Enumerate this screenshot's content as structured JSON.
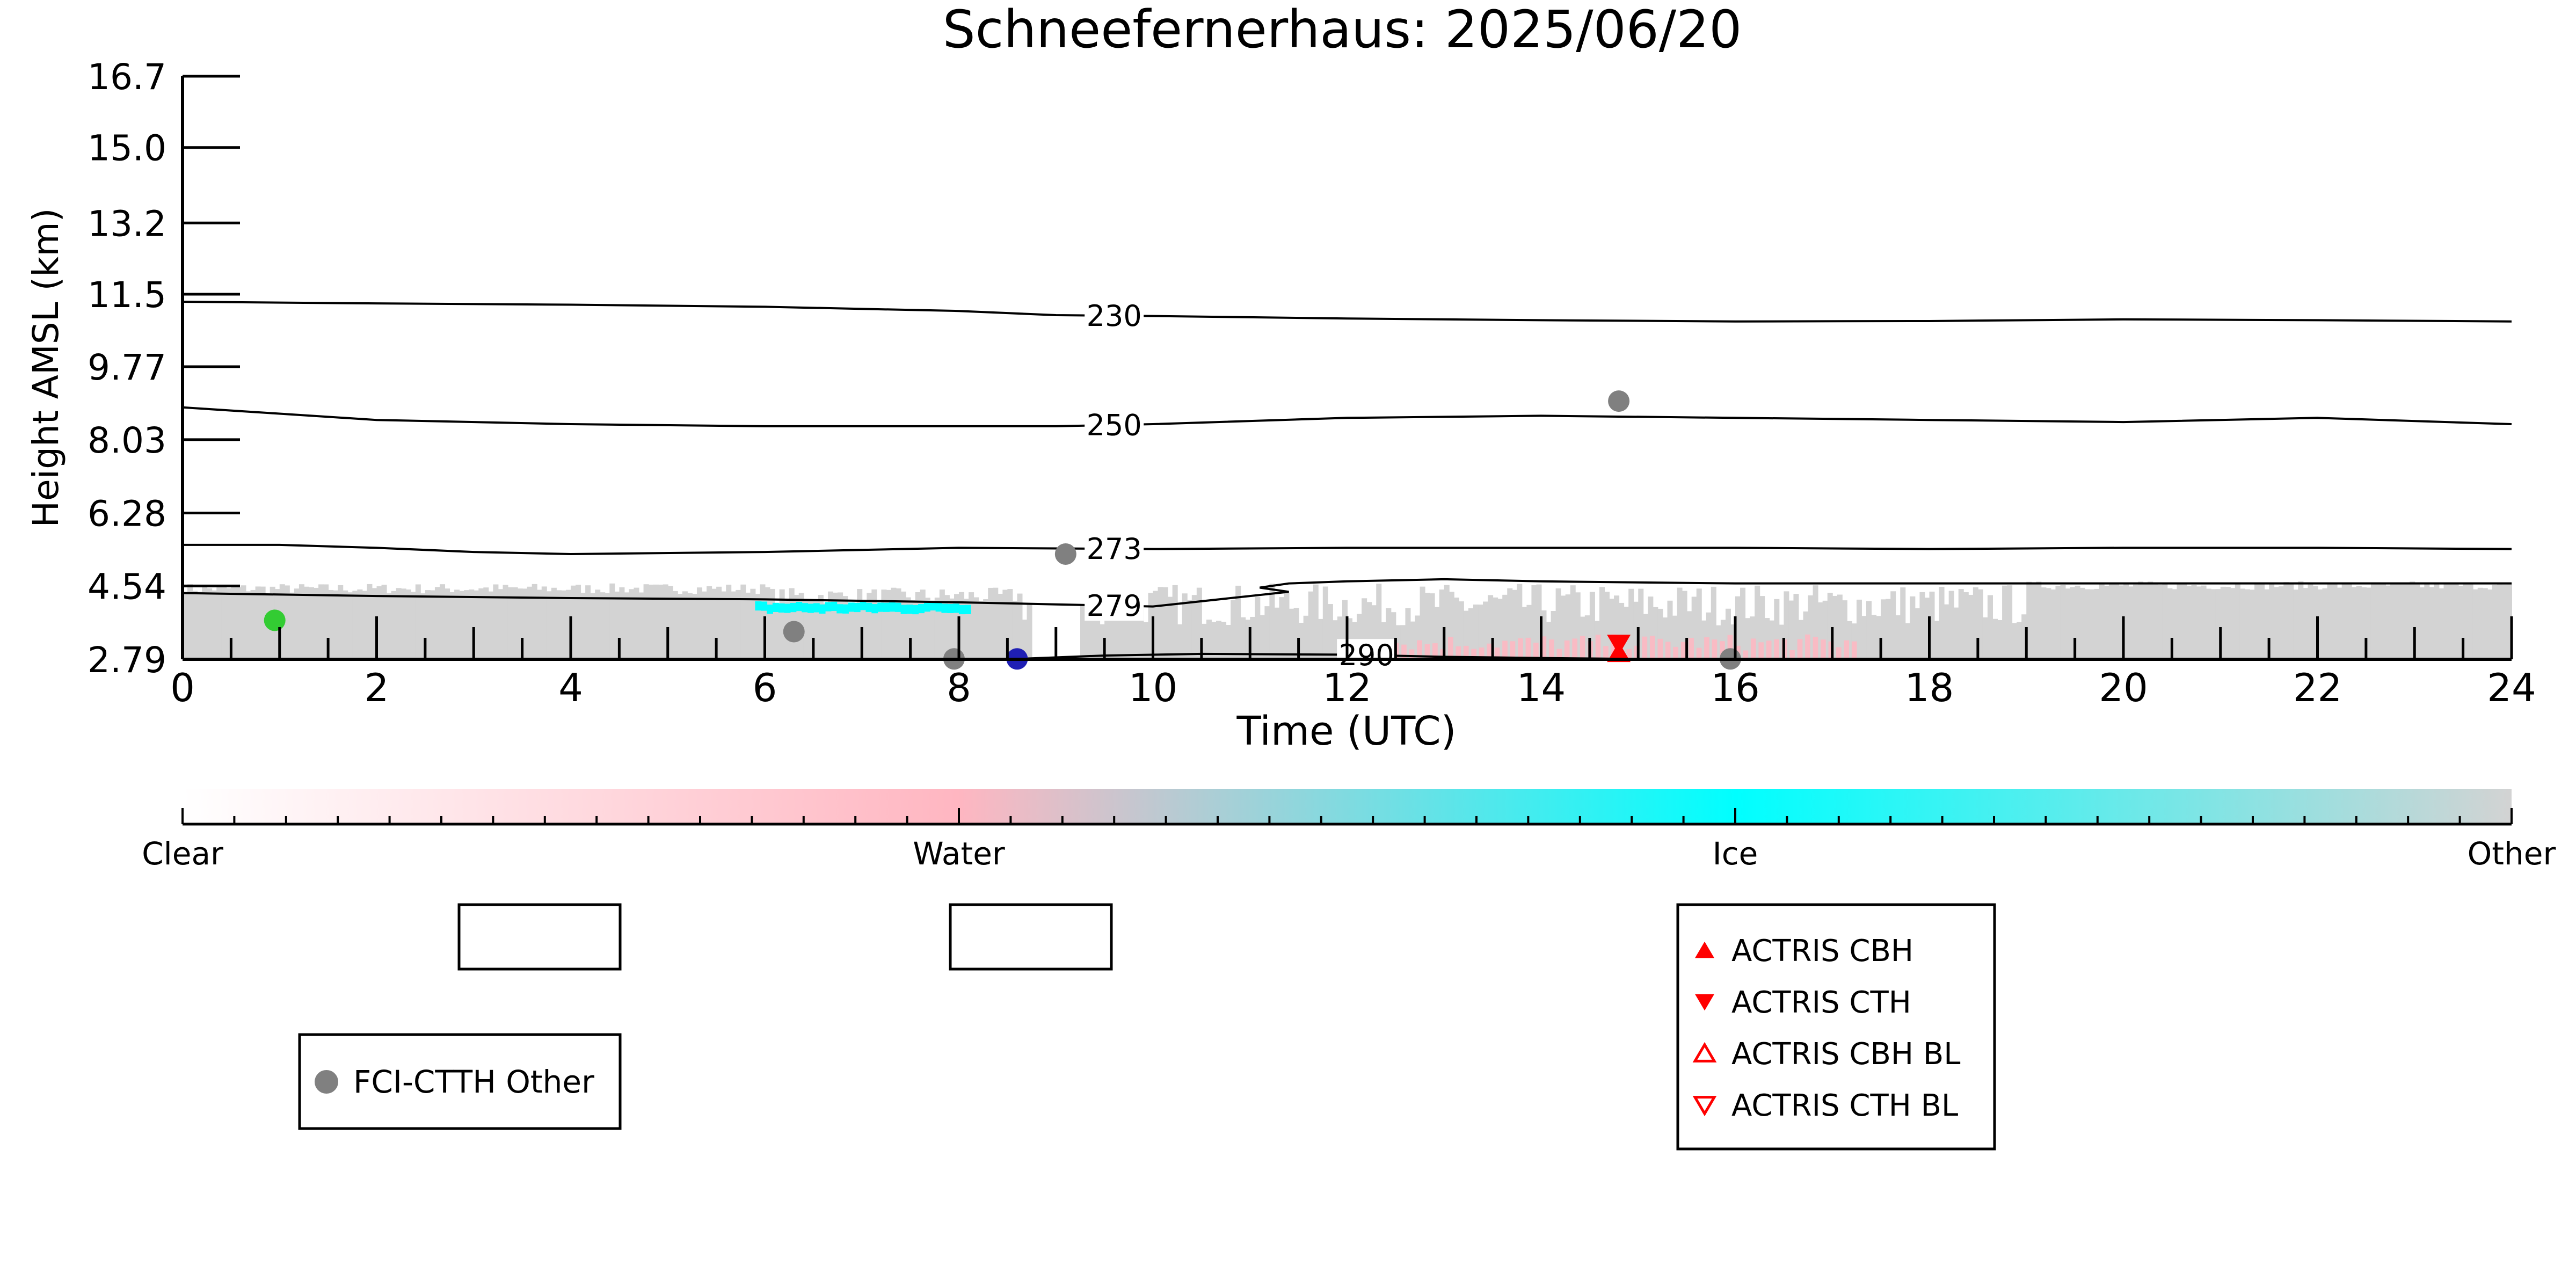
{
  "chart_data": {
    "type": "scatter",
    "title": "Schneefernerhaus: 2025/06/20",
    "xlabel": "Time (UTC)",
    "ylabel": "Height AMSL (km)",
    "xlim": [
      0,
      24
    ],
    "ylim": [
      2.79,
      16.7
    ],
    "xticks": [
      0,
      2,
      4,
      6,
      8,
      10,
      12,
      14,
      16,
      18,
      20,
      22,
      24
    ],
    "yticks": [
      "2.79",
      "4.54",
      "6.28",
      "8.03",
      "9.77",
      "11.5",
      "13.2",
      "15.0",
      "16.7"
    ],
    "temperature_contours": [
      {
        "label": "230",
        "label_x": 9.6,
        "points": [
          [
            0,
            11.32
          ],
          [
            2,
            11.28
          ],
          [
            4,
            11.25
          ],
          [
            6,
            11.2
          ],
          [
            8,
            11.1
          ],
          [
            9,
            11.0
          ],
          [
            10,
            10.98
          ],
          [
            12,
            10.92
          ],
          [
            14,
            10.88
          ],
          [
            16,
            10.85
          ],
          [
            18,
            10.86
          ],
          [
            20,
            10.9
          ],
          [
            22,
            10.88
          ],
          [
            24,
            10.85
          ]
        ]
      },
      {
        "label": "250",
        "label_x": 9.6,
        "points": [
          [
            0,
            8.8
          ],
          [
            1,
            8.65
          ],
          [
            2,
            8.5
          ],
          [
            4,
            8.4
          ],
          [
            6,
            8.35
          ],
          [
            8,
            8.35
          ],
          [
            9,
            8.35
          ],
          [
            10,
            8.4
          ],
          [
            12,
            8.55
          ],
          [
            14,
            8.6
          ],
          [
            16,
            8.55
          ],
          [
            18,
            8.5
          ],
          [
            20,
            8.45
          ],
          [
            22,
            8.55
          ],
          [
            24,
            8.4
          ]
        ]
      },
      {
        "label": "273",
        "label_x": 9.6,
        "points": [
          [
            0,
            5.52
          ],
          [
            1,
            5.52
          ],
          [
            2,
            5.45
          ],
          [
            3,
            5.35
          ],
          [
            4,
            5.3
          ],
          [
            6,
            5.35
          ],
          [
            8,
            5.45
          ],
          [
            10,
            5.42
          ],
          [
            12,
            5.45
          ],
          [
            14,
            5.45
          ],
          [
            16,
            5.45
          ],
          [
            18,
            5.42
          ],
          [
            20,
            5.45
          ],
          [
            22,
            5.45
          ],
          [
            24,
            5.42
          ]
        ]
      },
      {
        "label": "279",
        "label_x": 9.6,
        "points": [
          [
            0,
            4.37
          ],
          [
            2,
            4.3
          ],
          [
            4,
            4.25
          ],
          [
            6,
            4.22
          ],
          [
            8,
            4.15
          ],
          [
            9,
            4.1
          ],
          [
            10,
            4.05
          ],
          [
            11,
            4.3
          ],
          [
            11.4,
            4.4
          ],
          [
            11.1,
            4.5
          ],
          [
            11.4,
            4.6
          ],
          [
            12,
            4.65
          ],
          [
            13,
            4.7
          ],
          [
            14,
            4.65
          ],
          [
            16,
            4.6
          ],
          [
            18,
            4.6
          ],
          [
            20,
            4.6
          ],
          [
            22,
            4.6
          ],
          [
            24,
            4.6
          ]
        ]
      },
      {
        "label": "290",
        "label_x": 12.2,
        "points": [
          [
            8.5,
            2.79
          ],
          [
            9.5,
            2.88
          ],
          [
            10.5,
            2.92
          ],
          [
            12,
            2.9
          ],
          [
            13,
            2.85
          ],
          [
            14,
            2.82
          ],
          [
            15,
            2.8
          ]
        ]
      }
    ],
    "fci_ctth_points": [
      {
        "x": 0.95,
        "y": 3.72,
        "color": "#33cc33"
      },
      {
        "x": 6.3,
        "y": 3.45,
        "color": "#808080"
      },
      {
        "x": 7.95,
        "y": 2.8,
        "color": "#808080"
      },
      {
        "x": 8.6,
        "y": 2.8,
        "color": "#1f1fb4"
      },
      {
        "x": 9.1,
        "y": 5.3,
        "color": "#808080"
      },
      {
        "x": 14.8,
        "y": 8.95,
        "color": "#808080"
      },
      {
        "x": 15.95,
        "y": 2.8,
        "color": "#808080"
      }
    ],
    "actris_points": [
      {
        "x": 14.8,
        "y": 3.15,
        "kind": "CTH"
      },
      {
        "x": 14.8,
        "y": 2.95,
        "kind": "CBH"
      }
    ],
    "cloud_classes": [
      {
        "name": "Other",
        "color": "#d3d3d3"
      },
      {
        "name": "Ice",
        "color": "#00ffff"
      },
      {
        "name": "Water",
        "color": "#ffb6c1"
      }
    ],
    "colorbar": {
      "labels": [
        "Clear",
        "Water",
        "Ice",
        "Other"
      ],
      "stops": [
        {
          "pos": 0.0,
          "color": "#ffffff"
        },
        {
          "pos": 0.333,
          "color": "#ffb6c1"
        },
        {
          "pos": 0.667,
          "color": "#00ffff"
        },
        {
          "pos": 1.0,
          "color": "#d3d3d3"
        }
      ]
    },
    "legend_fci": {
      "label": "FCI-CTTH Other",
      "marker_color": "#808080"
    },
    "legend_actris": [
      {
        "label": "ACTRIS CBH",
        "marker": "up-filled"
      },
      {
        "label": "ACTRIS CTH",
        "marker": "down-filled"
      },
      {
        "label": "ACTRIS CBH BL",
        "marker": "up-open"
      },
      {
        "label": "ACTRIS CTH BL",
        "marker": "down-open"
      }
    ],
    "marker_color": "#ff0000",
    "grid": false
  }
}
